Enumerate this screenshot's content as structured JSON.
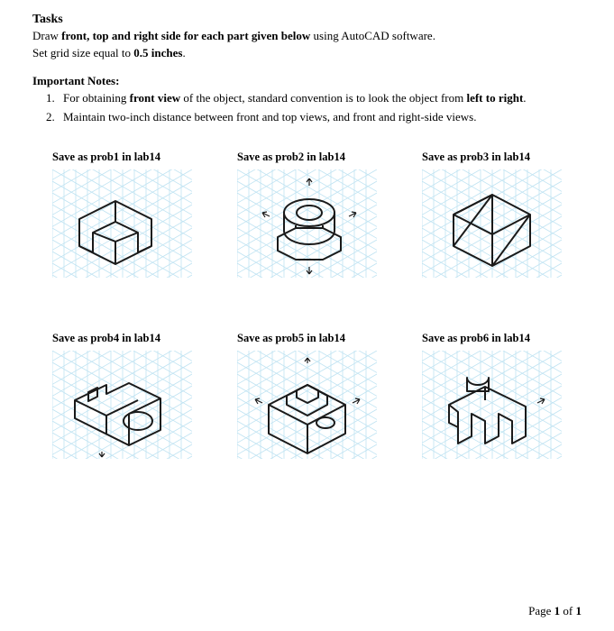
{
  "tasks": {
    "heading": "Tasks",
    "line1_pre": "Draw ",
    "line1_bold": "front, top and right side for each part given below",
    "line1_post": " using AutoCAD software.",
    "line2_pre": "Set grid size equal to ",
    "line2_bold": "0.5 inches",
    "line2_post": "."
  },
  "notes": {
    "heading": "Important Notes:",
    "item1_pre": "For obtaining ",
    "item1_b1": "front view",
    "item1_mid": " of the object, standard convention is to look the object from ",
    "item1_b2": "left to right",
    "item1_post": ".",
    "item2": "Maintain two-inch distance between front and top views, and front and right-side views."
  },
  "figs": {
    "f1": "Save as prob1 in lab14",
    "f2": "Save as prob2 in lab14",
    "f3": "Save as prob3 in lab14",
    "f4": "Save as prob4 in lab14",
    "f5": "Save as prob5 in lab14",
    "f6": "Save as prob6 in lab14"
  },
  "colors": {
    "grid": "#bfe3f2",
    "shape": "#1a1a1a"
  },
  "footer": {
    "pre": "Page ",
    "num": "1",
    "mid": " of ",
    "total": "1"
  }
}
